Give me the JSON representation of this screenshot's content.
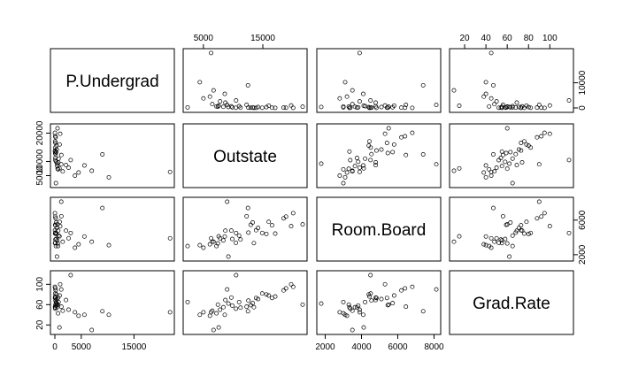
{
  "chart_data": {
    "type": "scatter",
    "kind": "pairs-scatterplot-matrix",
    "title": "",
    "point_style": "open-circle",
    "variables": [
      {
        "key": "P.Undergrad",
        "label": "P.Undergrad",
        "range": [
          0,
          21800
        ],
        "ticks": [
          0,
          5000,
          15000
        ],
        "ticks_alt": [
          0,
          10000
        ]
      },
      {
        "key": "Outstate",
        "label": "Outstate",
        "range": [
          2340,
          21700
        ],
        "ticks": [
          5000,
          15000
        ],
        "ticks_alt": [
          5000,
          10000,
          20000
        ]
      },
      {
        "key": "Room.Board",
        "label": "Room.Board",
        "range": [
          1780,
          8124
        ],
        "ticks": [
          2000,
          4000,
          6000,
          8000
        ],
        "ticks_alt": [
          2000,
          6000
        ]
      },
      {
        "key": "Grad.Rate",
        "label": "Grad.Rate",
        "range": [
          10,
          118
        ],
        "ticks": [
          20,
          40,
          60,
          80,
          100
        ],
        "ticks_alt": [
          20,
          60,
          100
        ]
      }
    ],
    "observations": [
      {
        "P.Undergrad": 537,
        "Outstate": 7440,
        "Room.Board": 3300,
        "Grad.Rate": 60
      },
      {
        "P.Undergrad": 1227,
        "Outstate": 12280,
        "Room.Board": 6450,
        "Grad.Rate": 56
      },
      {
        "P.Undergrad": 99,
        "Outstate": 11250,
        "Room.Board": 3750,
        "Grad.Rate": 54
      },
      {
        "P.Undergrad": 63,
        "Outstate": 12960,
        "Room.Board": 5450,
        "Grad.Rate": 59
      },
      {
        "P.Undergrad": 869,
        "Outstate": 7560,
        "Room.Board": 4120,
        "Grad.Rate": 15
      },
      {
        "P.Undergrad": 41,
        "Outstate": 13500,
        "Room.Board": 3335,
        "Grad.Rate": 55
      },
      {
        "P.Undergrad": 230,
        "Outstate": 13290,
        "Room.Board": 5720,
        "Grad.Rate": 63
      },
      {
        "P.Undergrad": 32,
        "Outstate": 13868,
        "Room.Board": 4826,
        "Grad.Rate": 73
      },
      {
        "P.Undergrad": 306,
        "Outstate": 15595,
        "Room.Board": 4400,
        "Grad.Rate": 80
      },
      {
        "P.Undergrad": 78,
        "Outstate": 10468,
        "Room.Board": 3380,
        "Grad.Rate": 52
      },
      {
        "P.Undergrad": 110,
        "Outstate": 16548,
        "Room.Board": 5406,
        "Grad.Rate": 73
      },
      {
        "P.Undergrad": 44,
        "Outstate": 17080,
        "Room.Board": 4440,
        "Grad.Rate": 76
      },
      {
        "P.Undergrad": 638,
        "Outstate": 9690,
        "Room.Board": 4785,
        "Grad.Rate": 74
      },
      {
        "P.Undergrad": 128,
        "Outstate": 12572,
        "Room.Board": 4552,
        "Grad.Rate": 68
      },
      {
        "P.Undergrad": 457,
        "Outstate": 8352,
        "Room.Board": 3640,
        "Grad.Rate": 55
      },
      {
        "P.Undergrad": 2120,
        "Outstate": 8700,
        "Room.Board": 4780,
        "Grad.Rate": 69
      },
      {
        "P.Undergrad": 1000,
        "Outstate": 19760,
        "Room.Board": 5300,
        "Grad.Rate": 100
      },
      {
        "P.Undergrad": 80,
        "Outstate": 14900,
        "Room.Board": 4510,
        "Grad.Rate": 82
      },
      {
        "P.Undergrad": 3800,
        "Outstate": 5000,
        "Room.Board": 2800,
        "Grad.Rate": 45
      },
      {
        "P.Undergrad": 250,
        "Outstate": 9860,
        "Room.Board": 3820,
        "Grad.Rate": 58
      },
      {
        "P.Undergrad": 600,
        "Outstate": 7200,
        "Room.Board": 3000,
        "Grad.Rate": 43
      },
      {
        "P.Undergrad": 1500,
        "Outstate": 6500,
        "Room.Board": 3500,
        "Grad.Rate": 48
      },
      {
        "P.Undergrad": 150,
        "Outstate": 18500,
        "Room.Board": 6200,
        "Grad.Rate": 88
      },
      {
        "P.Undergrad": 20,
        "Outstate": 20100,
        "Room.Board": 6800,
        "Grad.Rate": 95
      },
      {
        "P.Undergrad": 4500,
        "Outstate": 6100,
        "Room.Board": 3200,
        "Grad.Rate": 38
      },
      {
        "P.Undergrad": 700,
        "Outstate": 11000,
        "Room.Board": 4200,
        "Grad.Rate": 65
      },
      {
        "P.Undergrad": 2600,
        "Outstate": 7800,
        "Room.Board": 3900,
        "Grad.Rate": 50
      },
      {
        "P.Undergrad": 350,
        "Outstate": 14200,
        "Room.Board": 5100,
        "Grad.Rate": 71
      },
      {
        "P.Undergrad": 10221,
        "Outstate": 4400,
        "Room.Board": 3100,
        "Grad.Rate": 40
      },
      {
        "P.Undergrad": 21836,
        "Outstate": 6300,
        "Room.Board": 3900,
        "Grad.Rate": 45
      },
      {
        "P.Undergrad": 9000,
        "Outstate": 12500,
        "Room.Board": 7400,
        "Grad.Rate": 47
      },
      {
        "P.Undergrad": 3000,
        "Outstate": 10500,
        "Room.Board": 4500,
        "Grad.Rate": 118
      },
      {
        "P.Undergrad": 500,
        "Outstate": 21700,
        "Room.Board": 5500,
        "Grad.Rate": 60
      },
      {
        "P.Undergrad": 1200,
        "Outstate": 9000,
        "Room.Board": 8124,
        "Grad.Rate": 90
      },
      {
        "P.Undergrad": 200,
        "Outstate": 2340,
        "Room.Board": 3000,
        "Grad.Rate": 65
      },
      {
        "P.Undergrad": 7000,
        "Outstate": 6700,
        "Room.Board": 3500,
        "Grad.Rate": 10
      },
      {
        "P.Undergrad": 5600,
        "Outstate": 8600,
        "Room.Board": 4100,
        "Grad.Rate": 40
      },
      {
        "P.Undergrad": 400,
        "Outstate": 9200,
        "Room.Board": 1780,
        "Grad.Rate": 62
      },
      {
        "P.Undergrad": 900,
        "Outstate": 16000,
        "Room.Board": 5800,
        "Grad.Rate": 78
      },
      {
        "P.Undergrad": 60,
        "Outstate": 18900,
        "Room.Board": 6400,
        "Grad.Rate": 92
      }
    ]
  }
}
